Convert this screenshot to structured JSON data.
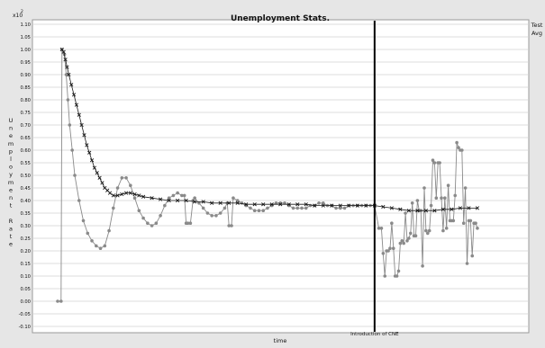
{
  "chart_data": {
    "type": "line",
    "title": "Unemployment Stats.",
    "xlabel": "time",
    "ylabel": "Unemployment Rate",
    "y_multiplier": "x10",
    "y_multiplier_exp": "2",
    "ylim": [
      -0.1,
      1.1
    ],
    "yticks": [
      "-0.10",
      "-0.05",
      "0.00",
      "0.05",
      "0.10",
      "0.15",
      "0.20",
      "0.25",
      "0.30",
      "0.35",
      "0.40",
      "0.45",
      "0.50",
      "0.55",
      "0.60",
      "0.65",
      "0.70",
      "0.75",
      "0.80",
      "0.85",
      "0.90",
      "0.95",
      "1.00",
      "1.05",
      "1.10"
    ],
    "xlim": [
      0,
      550
    ],
    "grid": true,
    "legend_placement": "right",
    "annotation": {
      "label": "Introduction of CNE",
      "x": 370
    },
    "series": [
      {
        "name": "Test",
        "marker": "circle",
        "color": "#8a8a8a",
        "points": [
          [
            0,
            0
          ],
          [
            4,
            0
          ],
          [
            5,
            1.0
          ],
          [
            8,
            0.98
          ],
          [
            10,
            0.9
          ],
          [
            12,
            0.8
          ],
          [
            14,
            0.7
          ],
          [
            17,
            0.6
          ],
          [
            20,
            0.5
          ],
          [
            25,
            0.4
          ],
          [
            30,
            0.32
          ],
          [
            35,
            0.27
          ],
          [
            40,
            0.24
          ],
          [
            45,
            0.22
          ],
          [
            50,
            0.21
          ],
          [
            55,
            0.22
          ],
          [
            60,
            0.28
          ],
          [
            65,
            0.37
          ],
          [
            70,
            0.45
          ],
          [
            75,
            0.49
          ],
          [
            80,
            0.49
          ],
          [
            85,
            0.46
          ],
          [
            90,
            0.41
          ],
          [
            95,
            0.36
          ],
          [
            100,
            0.33
          ],
          [
            105,
            0.31
          ],
          [
            110,
            0.3
          ],
          [
            115,
            0.31
          ],
          [
            120,
            0.34
          ],
          [
            125,
            0.38
          ],
          [
            130,
            0.41
          ],
          [
            135,
            0.42
          ],
          [
            140,
            0.43
          ],
          [
            145,
            0.42
          ],
          [
            148,
            0.42
          ],
          [
            150,
            0.31
          ],
          [
            152,
            0.31
          ],
          [
            155,
            0.31
          ],
          [
            158,
            0.4
          ],
          [
            160,
            0.41
          ],
          [
            165,
            0.39
          ],
          [
            170,
            0.37
          ],
          [
            175,
            0.35
          ],
          [
            180,
            0.34
          ],
          [
            185,
            0.34
          ],
          [
            190,
            0.35
          ],
          [
            195,
            0.37
          ],
          [
            198,
            0.39
          ],
          [
            200,
            0.3
          ],
          [
            203,
            0.3
          ],
          [
            205,
            0.41
          ],
          [
            210,
            0.4
          ],
          [
            215,
            0.39
          ],
          [
            220,
            0.38
          ],
          [
            225,
            0.37
          ],
          [
            230,
            0.36
          ],
          [
            235,
            0.36
          ],
          [
            240,
            0.36
          ],
          [
            245,
            0.37
          ],
          [
            250,
            0.38
          ],
          [
            255,
            0.39
          ],
          [
            260,
            0.39
          ],
          [
            265,
            0.39
          ],
          [
            270,
            0.38
          ],
          [
            275,
            0.37
          ],
          [
            280,
            0.37
          ],
          [
            285,
            0.37
          ],
          [
            290,
            0.37
          ],
          [
            295,
            0.38
          ],
          [
            300,
            0.38
          ],
          [
            305,
            0.39
          ],
          [
            310,
            0.39
          ],
          [
            315,
            0.38
          ],
          [
            320,
            0.38
          ],
          [
            325,
            0.37
          ],
          [
            330,
            0.37
          ],
          [
            335,
            0.37
          ],
          [
            340,
            0.38
          ],
          [
            345,
            0.38
          ],
          [
            350,
            0.38
          ],
          [
            355,
            0.38
          ],
          [
            360,
            0.38
          ],
          [
            365,
            0.38
          ],
          [
            370,
            0.38
          ],
          [
            375,
            0.29
          ],
          [
            378,
            0.29
          ],
          [
            380,
            0.19
          ],
          [
            382,
            0.1
          ],
          [
            384,
            0.2
          ],
          [
            386,
            0.2
          ],
          [
            388,
            0.21
          ],
          [
            390,
            0.31
          ],
          [
            392,
            0.21
          ],
          [
            394,
            0.1
          ],
          [
            396,
            0.1
          ],
          [
            398,
            0.12
          ],
          [
            400,
            0.23
          ],
          [
            402,
            0.24
          ],
          [
            404,
            0.23
          ],
          [
            406,
            0.35
          ],
          [
            408,
            0.24
          ],
          [
            410,
            0.25
          ],
          [
            412,
            0.27
          ],
          [
            414,
            0.39
          ],
          [
            416,
            0.26
          ],
          [
            418,
            0.26
          ],
          [
            420,
            0.4
          ],
          [
            422,
            0.36
          ],
          [
            424,
            0.36
          ],
          [
            426,
            0.14
          ],
          [
            428,
            0.45
          ],
          [
            430,
            0.28
          ],
          [
            432,
            0.27
          ],
          [
            434,
            0.28
          ],
          [
            436,
            0.38
          ],
          [
            438,
            0.56
          ],
          [
            440,
            0.55
          ],
          [
            442,
            0.41
          ],
          [
            444,
            0.55
          ],
          [
            446,
            0.55
          ],
          [
            448,
            0.41
          ],
          [
            450,
            0.28
          ],
          [
            452,
            0.41
          ],
          [
            454,
            0.29
          ],
          [
            456,
            0.46
          ],
          [
            458,
            0.32
          ],
          [
            460,
            0.32
          ],
          [
            462,
            0.32
          ],
          [
            464,
            0.42
          ],
          [
            466,
            0.63
          ],
          [
            468,
            0.61
          ],
          [
            470,
            0.6
          ],
          [
            472,
            0.6
          ],
          [
            474,
            0.31
          ],
          [
            476,
            0.45
          ],
          [
            478,
            0.15
          ],
          [
            480,
            0.32
          ],
          [
            482,
            0.32
          ],
          [
            484,
            0.18
          ],
          [
            486,
            0.31
          ],
          [
            488,
            0.31
          ],
          [
            490,
            0.29
          ]
        ]
      },
      {
        "name": "Avg",
        "marker": "x",
        "color": "#1a1a1a",
        "points": [
          [
            5,
            1.0
          ],
          [
            7,
            0.99
          ],
          [
            9,
            0.96
          ],
          [
            11,
            0.93
          ],
          [
            13,
            0.9
          ],
          [
            16,
            0.86
          ],
          [
            19,
            0.82
          ],
          [
            22,
            0.78
          ],
          [
            25,
            0.74
          ],
          [
            28,
            0.7
          ],
          [
            31,
            0.66
          ],
          [
            34,
            0.62
          ],
          [
            37,
            0.59
          ],
          [
            40,
            0.56
          ],
          [
            43,
            0.53
          ],
          [
            46,
            0.51
          ],
          [
            49,
            0.49
          ],
          [
            52,
            0.47
          ],
          [
            55,
            0.45
          ],
          [
            58,
            0.44
          ],
          [
            61,
            0.43
          ],
          [
            65,
            0.42
          ],
          [
            70,
            0.42
          ],
          [
            75,
            0.425
          ],
          [
            80,
            0.43
          ],
          [
            85,
            0.43
          ],
          [
            90,
            0.425
          ],
          [
            95,
            0.42
          ],
          [
            100,
            0.415
          ],
          [
            110,
            0.41
          ],
          [
            120,
            0.405
          ],
          [
            130,
            0.4
          ],
          [
            140,
            0.4
          ],
          [
            150,
            0.4
          ],
          [
            160,
            0.395
          ],
          [
            170,
            0.395
          ],
          [
            180,
            0.39
          ],
          [
            190,
            0.39
          ],
          [
            200,
            0.39
          ],
          [
            210,
            0.39
          ],
          [
            220,
            0.385
          ],
          [
            230,
            0.385
          ],
          [
            240,
            0.385
          ],
          [
            250,
            0.385
          ],
          [
            260,
            0.385
          ],
          [
            270,
            0.385
          ],
          [
            280,
            0.385
          ],
          [
            290,
            0.385
          ],
          [
            300,
            0.38
          ],
          [
            310,
            0.38
          ],
          [
            320,
            0.38
          ],
          [
            330,
            0.38
          ],
          [
            340,
            0.38
          ],
          [
            350,
            0.38
          ],
          [
            360,
            0.38
          ],
          [
            370,
            0.38
          ],
          [
            380,
            0.375
          ],
          [
            390,
            0.37
          ],
          [
            400,
            0.365
          ],
          [
            410,
            0.36
          ],
          [
            420,
            0.36
          ],
          [
            430,
            0.36
          ],
          [
            440,
            0.36
          ],
          [
            450,
            0.365
          ],
          [
            460,
            0.365
          ],
          [
            470,
            0.37
          ],
          [
            480,
            0.37
          ],
          [
            490,
            0.37
          ]
        ]
      }
    ]
  }
}
